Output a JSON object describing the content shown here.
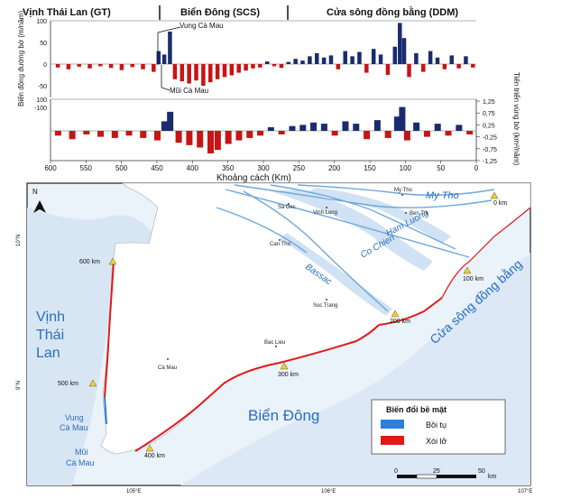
{
  "header": {
    "seg_gt": "Vịnh Thái Lan (GT)",
    "seg_scs": "Biển Đông (SCS)",
    "seg_ddm": "Cửa sông đồng bằng (DDM)"
  },
  "chart_data": {
    "type": "bar",
    "ylabel_left": "Biến động đường bờ (m/năm)",
    "ylabel_right": "Tiến triển vùng bờ (km²/năm)",
    "xlabel": "Khoảng cách (Km)",
    "x_ticks": [
      "600",
      "550",
      "500",
      "450",
      "400",
      "350",
      "300",
      "250",
      "200",
      "150",
      "100",
      "50",
      "0"
    ],
    "top_ticks": [
      "100",
      "50",
      "0",
      "-50",
      "-100"
    ],
    "top_ylim": [
      -100,
      100
    ],
    "bottom_ticks_left": [
      "100"
    ],
    "bottom_ticks_right": [
      "1,25",
      "0,75",
      "0,25",
      "-0,25",
      "-0,75",
      "-1,25"
    ],
    "bottom_ylim": [
      -1.25,
      1.25
    ],
    "annotation_vung": "Vung Cà Mau",
    "annotation_mui": "Mũi Cà Mau",
    "colors": {
      "accretion": "#1a2b6e",
      "erosion": "#c81414"
    },
    "top_series": [
      {
        "x": 590,
        "y": -8
      },
      {
        "x": 575,
        "y": -12
      },
      {
        "x": 560,
        "y": -6
      },
      {
        "x": 545,
        "y": -10
      },
      {
        "x": 530,
        "y": -5
      },
      {
        "x": 515,
        "y": -9
      },
      {
        "x": 500,
        "y": -14
      },
      {
        "x": 485,
        "y": -7
      },
      {
        "x": 470,
        "y": -12
      },
      {
        "x": 455,
        "y": -18
      },
      {
        "x": 448,
        "y": 30
      },
      {
        "x": 440,
        "y": 22
      },
      {
        "x": 432,
        "y": 75
      },
      {
        "x": 425,
        "y": -35
      },
      {
        "x": 415,
        "y": -40
      },
      {
        "x": 405,
        "y": -45
      },
      {
        "x": 395,
        "y": -38
      },
      {
        "x": 385,
        "y": -50
      },
      {
        "x": 375,
        "y": -42
      },
      {
        "x": 365,
        "y": -35
      },
      {
        "x": 355,
        "y": -30
      },
      {
        "x": 345,
        "y": -26
      },
      {
        "x": 335,
        "y": -20
      },
      {
        "x": 325,
        "y": -15
      },
      {
        "x": 315,
        "y": -10
      },
      {
        "x": 305,
        "y": -8
      },
      {
        "x": 295,
        "y": 6
      },
      {
        "x": 285,
        "y": -5
      },
      {
        "x": 275,
        "y": -9
      },
      {
        "x": 265,
        "y": 5
      },
      {
        "x": 255,
        "y": 12
      },
      {
        "x": 245,
        "y": 8
      },
      {
        "x": 235,
        "y": 18
      },
      {
        "x": 225,
        "y": 25
      },
      {
        "x": 215,
        "y": 15
      },
      {
        "x": 205,
        "y": 20
      },
      {
        "x": 195,
        "y": -12
      },
      {
        "x": 185,
        "y": 30
      },
      {
        "x": 175,
        "y": 18
      },
      {
        "x": 165,
        "y": 28
      },
      {
        "x": 155,
        "y": -20
      },
      {
        "x": 145,
        "y": 35
      },
      {
        "x": 135,
        "y": 22
      },
      {
        "x": 125,
        "y": -25
      },
      {
        "x": 115,
        "y": 40
      },
      {
        "x": 108,
        "y": 95
      },
      {
        "x": 102,
        "y": 60
      },
      {
        "x": 95,
        "y": -30
      },
      {
        "x": 85,
        "y": 25
      },
      {
        "x": 75,
        "y": -18
      },
      {
        "x": 65,
        "y": 30
      },
      {
        "x": 55,
        "y": 15
      },
      {
        "x": 45,
        "y": -12
      },
      {
        "x": 35,
        "y": 20
      },
      {
        "x": 25,
        "y": -10
      },
      {
        "x": 15,
        "y": 18
      },
      {
        "x": 5,
        "y": -8
      }
    ],
    "bottom_series": [
      {
        "x": 590,
        "y": -0.2
      },
      {
        "x": 570,
        "y": -0.35
      },
      {
        "x": 550,
        "y": -0.15
      },
      {
        "x": 530,
        "y": -0.25
      },
      {
        "x": 510,
        "y": -0.3
      },
      {
        "x": 490,
        "y": -0.2
      },
      {
        "x": 470,
        "y": -0.3
      },
      {
        "x": 450,
        "y": -0.4
      },
      {
        "x": 440,
        "y": 0.4
      },
      {
        "x": 432,
        "y": 0.8
      },
      {
        "x": 420,
        "y": -0.5
      },
      {
        "x": 405,
        "y": -0.6
      },
      {
        "x": 390,
        "y": -0.7
      },
      {
        "x": 375,
        "y": -0.95
      },
      {
        "x": 365,
        "y": -0.8
      },
      {
        "x": 350,
        "y": -0.55
      },
      {
        "x": 335,
        "y": -0.4
      },
      {
        "x": 320,
        "y": -0.3
      },
      {
        "x": 305,
        "y": -0.2
      },
      {
        "x": 290,
        "y": 0.15
      },
      {
        "x": 275,
        "y": -0.15
      },
      {
        "x": 260,
        "y": 0.2
      },
      {
        "x": 245,
        "y": 0.25
      },
      {
        "x": 230,
        "y": 0.35
      },
      {
        "x": 215,
        "y": 0.3
      },
      {
        "x": 200,
        "y": -0.2
      },
      {
        "x": 185,
        "y": 0.4
      },
      {
        "x": 170,
        "y": 0.3
      },
      {
        "x": 155,
        "y": -0.35
      },
      {
        "x": 140,
        "y": 0.45
      },
      {
        "x": 125,
        "y": -0.3
      },
      {
        "x": 112,
        "y": 0.6
      },
      {
        "x": 105,
        "y": 1.0
      },
      {
        "x": 98,
        "y": -0.4
      },
      {
        "x": 85,
        "y": 0.35
      },
      {
        "x": 70,
        "y": -0.25
      },
      {
        "x": 55,
        "y": 0.3
      },
      {
        "x": 40,
        "y": -0.2
      },
      {
        "x": 25,
        "y": 0.25
      },
      {
        "x": 10,
        "y": -0.15
      }
    ]
  },
  "map": {
    "north": "N",
    "lat_10": "10°N",
    "lat_9": "9°N",
    "lon_105": "105°E",
    "lon_106": "106°E",
    "lon_107": "107°E",
    "labels": {
      "vinh_thai_lan_1": "Vịnh",
      "vinh_thai_lan_2": "Thái",
      "vinh_thai_lan_3": "Lan",
      "bien_dong": "Biển Đông",
      "cua_song": "Cửa sông đồng bằng",
      "vung_1": "Vung",
      "vung_2": "Cà Mau",
      "mui_1": "Mũi",
      "mui_2": "Cà Mau",
      "my_tho": "My Tho",
      "ham_luong": "Ham Luong",
      "co_chien": "Co Chien",
      "bassac": "Bassac",
      "city_my_tho": "My Tho",
      "city_ben_tre": "Ben Tre",
      "city_sa_dec": "Sa Dec",
      "city_vinh_long": "Vinh Long",
      "city_can_tho": "Can Tho",
      "city_soc_trang": "Soc Trang",
      "city_bac_lieu": "Bac Lieu",
      "city_ca_mau": "Cà Mau"
    },
    "km_markers": [
      "0 km",
      "100 km",
      "200 km",
      "300 km",
      "400 km",
      "500 km",
      "600 km"
    ],
    "legend": {
      "title": "Biến đổi bề mặt",
      "accretion": "Bồi tụ",
      "erosion": "Xói lở"
    },
    "scalebar": {
      "t0": "0",
      "t25": "25",
      "t50": "50",
      "unit": "km"
    }
  }
}
